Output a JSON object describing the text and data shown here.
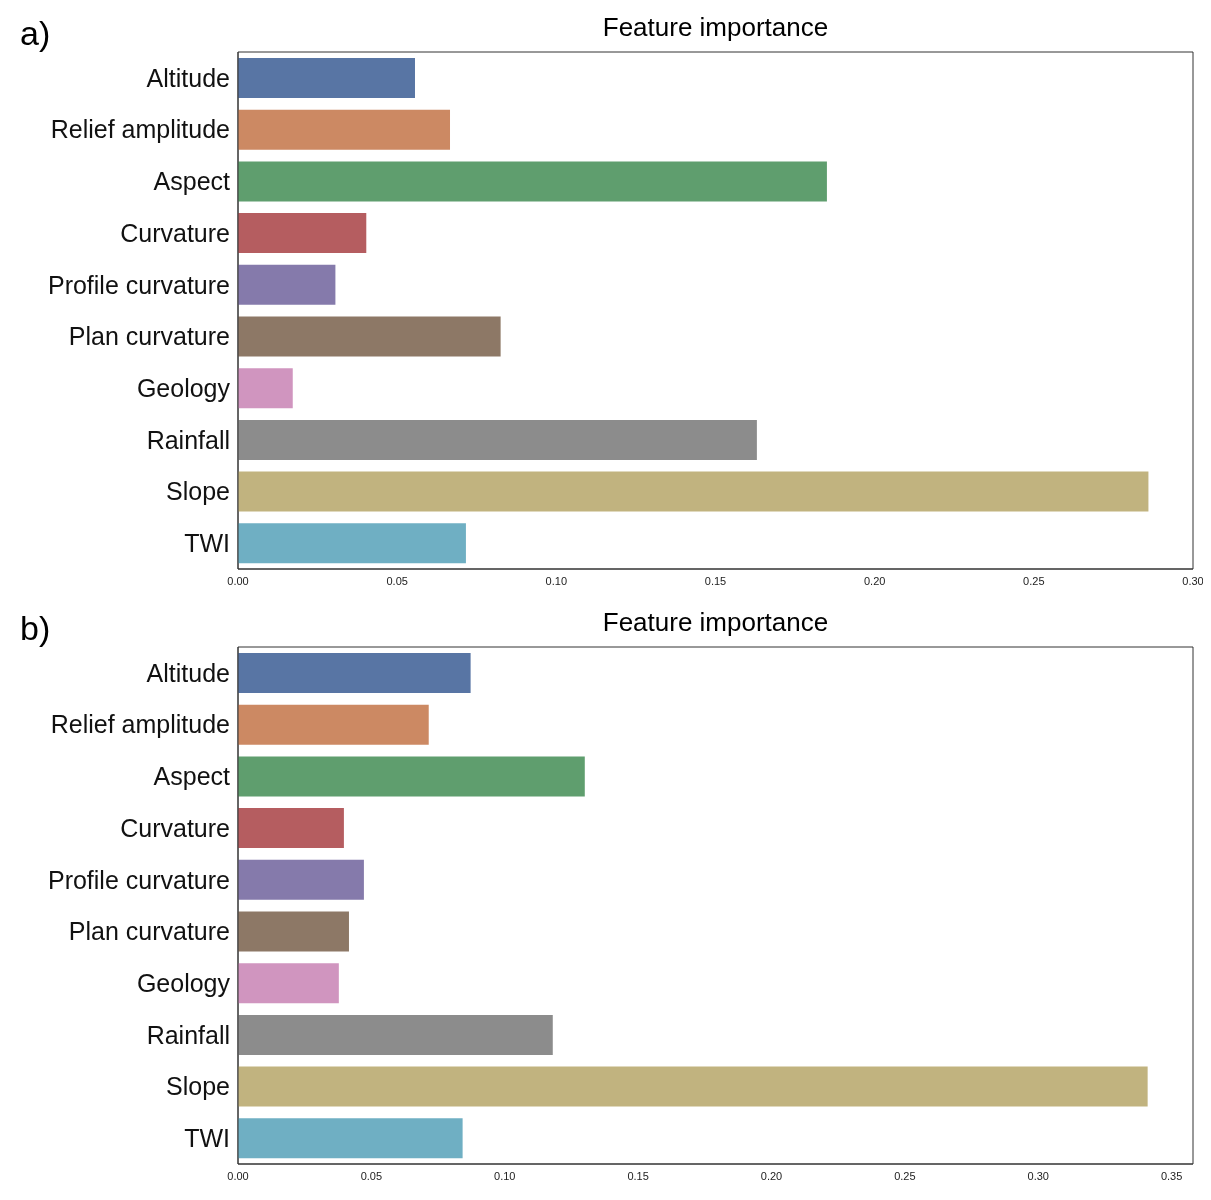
{
  "chart_data": [
    {
      "type": "bar",
      "orientation": "horizontal",
      "title": "Feature importance",
      "annotations": [
        "a)"
      ],
      "categories": [
        "Altitude",
        "Relief amplitude",
        "Aspect",
        "Curvature",
        "Profile curvature",
        "Plan curvature",
        "Geology",
        "Rainfall",
        "Slope",
        "TWI"
      ],
      "values": [
        0.0556,
        0.0666,
        0.185,
        0.0403,
        0.0306,
        0.0825,
        0.0172,
        0.163,
        0.286,
        0.0716
      ],
      "colors": [
        "#5875a4",
        "#cc8963",
        "#5f9e6e",
        "#b55d60",
        "#857aab",
        "#8d7866",
        "#d095bf",
        "#8c8c8c",
        "#c1b37f",
        "#6fafc3"
      ],
      "xlim": [
        0,
        0.3
      ],
      "xticks": [
        {
          "value": 0,
          "label": "0.00"
        },
        {
          "value": 0.05,
          "label": "0.05"
        },
        {
          "value": 0.1,
          "label": "0.10"
        },
        {
          "value": 0.15,
          "label": "0.15"
        },
        {
          "value": 0.2,
          "label": "0.20"
        },
        {
          "value": 0.25,
          "label": "0.25"
        },
        {
          "value": 0.3,
          "label": "0.30"
        }
      ],
      "grid": false,
      "legend": false
    },
    {
      "type": "bar",
      "orientation": "horizontal",
      "title": "Feature importance",
      "annotations": [
        "b)"
      ],
      "categories": [
        "Altitude",
        "Relief amplitude",
        "Aspect",
        "Curvature",
        "Profile curvature",
        "Plan curvature",
        "Geology",
        "Rainfall",
        "Slope",
        "TWI"
      ],
      "values": [
        0.0872,
        0.0715,
        0.13,
        0.0397,
        0.0472,
        0.0416,
        0.0378,
        0.118,
        0.341,
        0.0842
      ],
      "colors": [
        "#5875a4",
        "#cc8963",
        "#5f9e6e",
        "#b55d60",
        "#857aab",
        "#8d7866",
        "#d095bf",
        "#8c8c8c",
        "#c1b37f",
        "#6fafc3"
      ],
      "xlim": [
        0,
        0.358
      ],
      "xticks": [
        {
          "value": 0,
          "label": "0.00"
        },
        {
          "value": 0.05,
          "label": "0.05"
        },
        {
          "value": 0.1,
          "label": "0.10"
        },
        {
          "value": 0.15,
          "label": "0.15"
        },
        {
          "value": 0.2,
          "label": "0.20"
        },
        {
          "value": 0.25,
          "label": "0.25"
        },
        {
          "value": 0.3,
          "label": "0.30"
        },
        {
          "value": 0.35,
          "label": "0.35"
        }
      ],
      "grid": false,
      "legend": false
    }
  ]
}
